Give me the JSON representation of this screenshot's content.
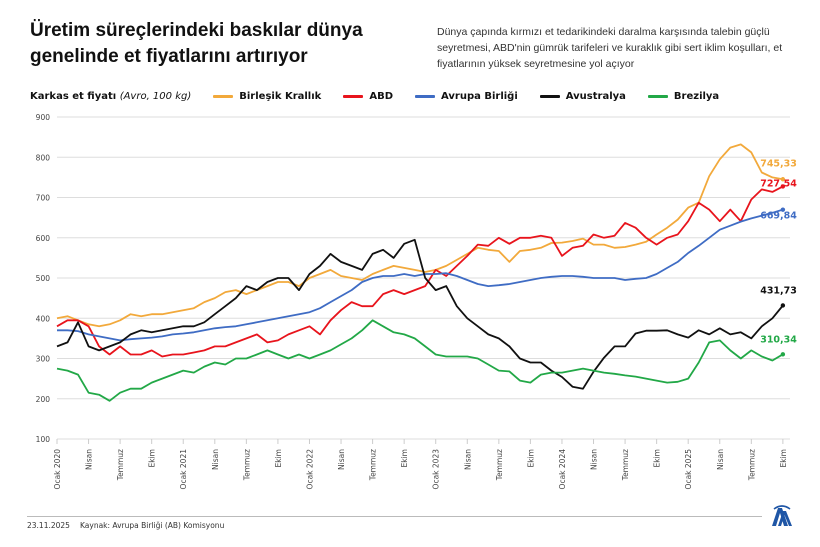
{
  "header": {
    "title": "Üretim süreçlerindeki baskılar dünya genelinde et fiyatlarını artırıyor",
    "description": "Dünya çapında kırmızı et tedarikindeki daralma karşısında talebin güçlü seyretmesi, ABD'nin gümrük tarifeleri ve kuraklık gibi sert iklim koşulları, et fiyatlarının yüksek seyretmesine yol açıyor"
  },
  "footer": {
    "date": "23.11.2025",
    "source": "Kaynak: Avrupa Birliği (AB) Komisyonu",
    "logo": "AA"
  },
  "chart_data": {
    "type": "line",
    "ylabel_main": "Karkas et fiyatı",
    "ylabel_unit": "(Avro, 100 kg)",
    "ylim": [
      100,
      900
    ],
    "yticks": [
      "100",
      "200",
      "300",
      "400",
      "500",
      "600",
      "700",
      "800",
      "900"
    ],
    "grid": true,
    "legend_placement": "top",
    "x_start": "2020-01",
    "x_end": "2025-10",
    "xtick_labels": [
      "Ocak 2020",
      "Nisan",
      "Temmuz",
      "Ekim",
      "Ocak 2021",
      "Nisan",
      "Temmuz",
      "Ekim",
      "Ocak 2022",
      "Nisan",
      "Temmuz",
      "Ekim",
      "Ocak 2023",
      "Nisan",
      "Temmuz",
      "Ekim",
      "Ocak 2024",
      "Nisan",
      "Temmuz",
      "Ekim",
      "Ocak 2025",
      "Nisan",
      "Temmuz",
      "Ekim"
    ],
    "series": [
      {
        "name": "Birleşik Krallık",
        "color": "#f2a93b",
        "end_label": "745,33",
        "values": [
          400,
          405,
          395,
          385,
          380,
          385,
          395,
          410,
          405,
          410,
          410,
          415,
          420,
          425,
          440,
          450,
          465,
          470,
          460,
          470,
          480,
          490,
          490,
          480,
          500,
          510,
          520,
          505,
          500,
          495,
          510,
          520,
          530,
          525,
          520,
          515,
          520,
          530,
          545,
          560,
          575,
          570,
          567,
          540,
          567,
          570,
          575,
          587,
          588,
          592,
          598,
          583,
          583,
          575,
          577,
          583,
          590,
          608,
          625,
          645,
          675,
          687,
          753,
          795,
          824,
          832,
          812,
          762,
          750,
          745.33
        ]
      },
      {
        "name": "ABD",
        "color": "#e8141c",
        "end_label": "727,54",
        "values": [
          380,
          395,
          395,
          380,
          330,
          310,
          330,
          310,
          310,
          320,
          305,
          310,
          310,
          315,
          320,
          330,
          330,
          340,
          350,
          360,
          340,
          345,
          360,
          370,
          380,
          360,
          395,
          420,
          440,
          430,
          430,
          460,
          470,
          460,
          470,
          480,
          520,
          505,
          530,
          555,
          583,
          580,
          600,
          585,
          600,
          600,
          605,
          600,
          555,
          575,
          580,
          608,
          600,
          605,
          637,
          625,
          600,
          583,
          600,
          608,
          641,
          687,
          670,
          641,
          670,
          641,
          695,
          720,
          714,
          727.54
        ]
      },
      {
        "name": "Avrupa Birliği",
        "color": "#3f6cc4",
        "end_label": "669,84",
        "values": [
          370,
          370,
          368,
          360,
          355,
          350,
          345,
          348,
          350,
          352,
          355,
          360,
          362,
          365,
          370,
          375,
          378,
          380,
          385,
          390,
          395,
          400,
          405,
          410,
          415,
          425,
          440,
          455,
          470,
          490,
          500,
          505,
          505,
          510,
          505,
          510,
          510,
          512,
          505,
          495,
          485,
          480,
          482,
          485,
          490,
          495,
          500,
          503,
          505,
          505,
          503,
          500,
          500,
          500,
          495,
          498,
          500,
          510,
          525,
          540,
          562,
          580,
          600,
          620,
          630,
          640,
          648,
          655,
          662,
          669.84
        ]
      },
      {
        "name": "Avustralya",
        "color": "#111111",
        "end_label": "431,73",
        "values": [
          330,
          340,
          390,
          330,
          320,
          330,
          340,
          360,
          370,
          365,
          370,
          375,
          380,
          380,
          390,
          410,
          430,
          450,
          480,
          470,
          490,
          500,
          500,
          470,
          510,
          530,
          560,
          540,
          530,
          520,
          560,
          570,
          550,
          585,
          595,
          500,
          470,
          480,
          430,
          400,
          380,
          360,
          350,
          330,
          300,
          290,
          290,
          270,
          254,
          230,
          225,
          267,
          302,
          330,
          330,
          362,
          369,
          369,
          370,
          360,
          352,
          370,
          360,
          375,
          360,
          365,
          350,
          380,
          400,
          431.73
        ]
      },
      {
        "name": "Brezilya",
        "color": "#22a847",
        "end_label": "310,34",
        "values": [
          275,
          270,
          260,
          215,
          210,
          195,
          215,
          225,
          225,
          240,
          250,
          260,
          270,
          265,
          280,
          290,
          285,
          300,
          300,
          310,
          320,
          310,
          300,
          310,
          300,
          310,
          320,
          335,
          350,
          370,
          395,
          380,
          365,
          360,
          350,
          330,
          310,
          305,
          305,
          305,
          300,
          285,
          270,
          268,
          245,
          240,
          260,
          265,
          265,
          270,
          275,
          270,
          265,
          262,
          258,
          255,
          250,
          245,
          240,
          242,
          250,
          290,
          340,
          345,
          320,
          300,
          320,
          305,
          295,
          310.34
        ]
      }
    ]
  }
}
